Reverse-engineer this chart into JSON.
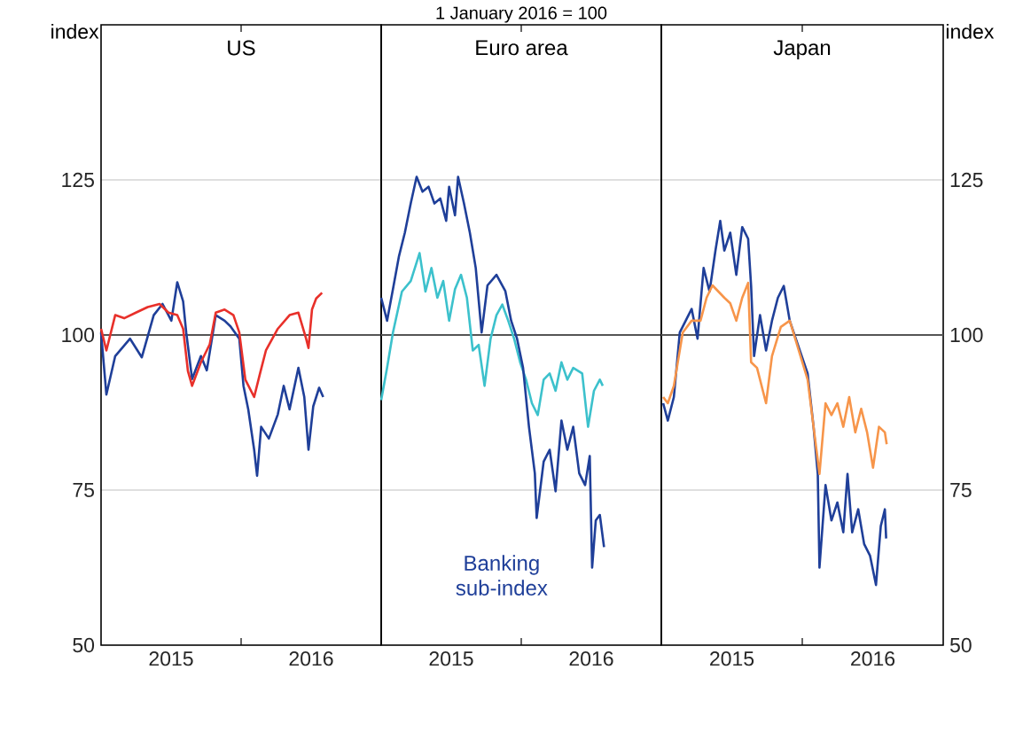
{
  "chart_data": [
    {
      "type": "line",
      "title": "US",
      "ylabel": "index",
      "xlim": [
        2015,
        2017
      ],
      "xticks": [
        {
          "value": 2015.5,
          "label": "2015"
        },
        {
          "value": 2016,
          "label": null
        },
        {
          "value": 2016.5,
          "label": "2016"
        }
      ],
      "ylim": [
        50,
        150
      ],
      "yticks": [
        50,
        75,
        100,
        125
      ],
      "grid": "y",
      "ref_lines": [
        {
          "axis": "y",
          "value": 100,
          "color": "#555555"
        }
      ],
      "series": [
        {
          "color": "#1f3f99",
          "x": [
            2015.0,
            2015.038,
            2015.101,
            2015.207,
            2015.291,
            2015.376,
            2015.439,
            2015.502,
            2015.544,
            2015.586,
            2015.608,
            2015.65,
            2015.713,
            2015.755,
            2015.819,
            2015.882,
            2015.924,
            2015.987,
            2016.017,
            2016.051,
            2016.093,
            2016.114,
            2016.143,
            2016.198,
            2016.262,
            2016.304,
            2016.346,
            2016.409,
            2016.451,
            2016.481,
            2016.515,
            2016.557,
            2016.586
          ],
          "values": [
            100.4,
            90.4,
            96.6,
            99.4,
            96.4,
            103.2,
            105,
            102.3,
            108.5,
            105.4,
            100.4,
            92.9,
            96.6,
            94.3,
            103.2,
            102.3,
            101.4,
            99.4,
            91.8,
            88,
            81.5,
            77.3,
            85.2,
            83.3,
            87.2,
            91.8,
            88,
            94.7,
            90,
            81.5,
            88.5,
            91.5,
            90
          ]
        },
        {
          "color": "#e8302a",
          "x": [
            2015.0,
            2015.038,
            2015.101,
            2015.165,
            2015.249,
            2015.333,
            2015.418,
            2015.481,
            2015.544,
            2015.586,
            2015.62,
            2015.65,
            2015.713,
            2015.776,
            2015.819,
            2015.882,
            2015.945,
            2015.987,
            2016.03,
            2016.093,
            2016.135,
            2016.177,
            2016.262,
            2016.346,
            2016.409,
            2016.464,
            2016.481,
            2016.506,
            2016.536,
            2016.578
          ],
          "values": [
            101,
            97.5,
            103.2,
            102.7,
            103.6,
            104.5,
            105,
            103.6,
            103.2,
            101,
            94.2,
            91.8,
            95.6,
            98.5,
            103.6,
            104.1,
            103.2,
            100.4,
            92.8,
            90,
            93.8,
            97.5,
            101,
            103.2,
            103.6,
            99.4,
            97.9,
            104.1,
            105.9,
            106.8
          ]
        }
      ]
    },
    {
      "type": "line",
      "title": "Euro area",
      "subtitle": "1 January 2016 = 100",
      "xlim": [
        2015,
        2017
      ],
      "xticks": [
        {
          "value": 2015.5,
          "label": "2015"
        },
        {
          "value": 2016,
          "label": null
        },
        {
          "value": 2016.5,
          "label": "2016"
        }
      ],
      "ylim": [
        50,
        150
      ],
      "yticks": [
        50,
        75,
        100,
        125
      ],
      "grid": "y",
      "tick_labels": "x",
      "ref_lines": [
        {
          "axis": "y",
          "value": 100,
          "color": "#555555"
        }
      ],
      "series": [
        {
          "color": "#3cc1cc",
          "x": [
            2015.0,
            2015.042,
            2015.084,
            2015.148,
            2015.211,
            2015.274,
            2015.316,
            2015.359,
            2015.401,
            2015.443,
            2015.485,
            2015.527,
            2015.57,
            2015.612,
            2015.654,
            2015.696,
            2015.738,
            2015.781,
            2015.823,
            2015.865,
            2015.907,
            2015.949,
            2015.992,
            2016.034,
            2016.076,
            2016.118,
            2016.16,
            2016.203,
            2016.245,
            2016.287,
            2016.329,
            2016.371,
            2016.435,
            2016.477,
            2016.519,
            2016.561,
            2016.582
          ],
          "values": [
            89.5,
            94.7,
            100.4,
            107,
            108.7,
            113.2,
            107,
            110.8,
            106,
            108.7,
            102.3,
            107.4,
            109.7,
            106,
            97.5,
            98.4,
            91.8,
            99.4,
            103.2,
            104.9,
            102.3,
            99.4,
            95.6,
            92.8,
            89,
            87.1,
            92.8,
            93.8,
            91,
            95.6,
            92.8,
            94.7,
            93.8,
            85.2,
            91,
            92.8,
            91.8
          ]
        },
        {
          "name": "Banking sub-index",
          "color": "#1f3f99",
          "x": [
            2015.0,
            2015.042,
            2015.084,
            2015.127,
            2015.169,
            2015.211,
            2015.253,
            2015.295,
            2015.338,
            2015.38,
            2015.422,
            2015.464,
            2015.485,
            2015.527,
            2015.549,
            2015.591,
            2015.633,
            2015.675,
            2015.717,
            2015.759,
            2015.823,
            2015.886,
            2015.928,
            2015.97,
            2016.013,
            2016.055,
            2016.097,
            2016.11,
            2016.16,
            2016.203,
            2016.245,
            2016.287,
            2016.329,
            2016.371,
            2016.414,
            2016.456,
            2016.489,
            2016.506,
            2016.532,
            2016.561,
            2016.591
          ],
          "values": [
            106,
            102.3,
            107.4,
            112.7,
            116.5,
            121.2,
            125.5,
            123.1,
            123.9,
            121.2,
            122,
            118.4,
            123.9,
            119.3,
            125.5,
            121.2,
            116.5,
            110.8,
            100.4,
            108,
            109.7,
            107.1,
            102.3,
            99.4,
            94.7,
            85.2,
            77.7,
            70.5,
            79.6,
            81.5,
            74.8,
            86.2,
            81.5,
            85.2,
            77.7,
            75.8,
            80.5,
            62.5,
            70.1,
            71,
            65.8
          ]
        }
      ]
    },
    {
      "type": "line",
      "title": "Japan",
      "y2label": "index",
      "xlim": [
        2015,
        2017
      ],
      "xticks": [
        {
          "value": 2015.5,
          "label": "2015"
        },
        {
          "value": 2016,
          "label": null
        },
        {
          "value": 2016.5,
          "label": "2016"
        }
      ],
      "y2lim": [
        50,
        150
      ],
      "y2ticks": [
        50,
        75,
        100,
        125
      ],
      "grid": "y",
      "ref_lines": [
        {
          "axis": "y2",
          "value": 100,
          "color": "#555555"
        }
      ],
      "series": [
        {
          "axis": "y2",
          "color": "#1f3f99",
          "x": [
            2015.013,
            2015.046,
            2015.089,
            2015.131,
            2015.173,
            2015.215,
            2015.257,
            2015.3,
            2015.342,
            2015.384,
            2015.418,
            2015.447,
            2015.489,
            2015.532,
            2015.574,
            2015.616,
            2015.637,
            2015.658,
            2015.7,
            2015.743,
            2015.785,
            2015.827,
            2015.869,
            2015.911,
            2015.954,
            2015.996,
            2016.038,
            2016.08,
            2016.11,
            2016.122,
            2016.165,
            2016.207,
            2016.249,
            2016.291,
            2016.321,
            2016.354,
            2016.397,
            2016.439,
            2016.481,
            2016.523,
            2016.557,
            2016.586,
            2016.595
          ],
          "values": [
            89,
            86.2,
            90,
            100.4,
            102.3,
            104.2,
            99.4,
            110.8,
            107,
            113.6,
            118.4,
            113.6,
            116.5,
            109.7,
            117.4,
            115.5,
            107.9,
            96.6,
            103.2,
            97.5,
            102.3,
            106,
            107.9,
            102.3,
            99.4,
            96.6,
            93.8,
            85.2,
            77.6,
            62.5,
            75.8,
            70.1,
            73,
            68.2,
            77.6,
            68.2,
            71.9,
            66.3,
            64.4,
            59.7,
            69.2,
            71.9,
            67.2
          ]
        },
        {
          "axis": "y2",
          "color": "#f7954a",
          "x": [
            2015.013,
            2015.046,
            2015.089,
            2015.152,
            2015.215,
            2015.278,
            2015.321,
            2015.363,
            2015.405,
            2015.447,
            2015.489,
            2015.532,
            2015.574,
            2015.616,
            2015.637,
            2015.679,
            2015.743,
            2015.785,
            2015.848,
            2015.911,
            2015.975,
            2016.038,
            2016.08,
            2016.122,
            2016.165,
            2016.207,
            2016.249,
            2016.291,
            2016.333,
            2016.376,
            2016.418,
            2016.46,
            2016.502,
            2016.544,
            2016.586,
            2016.599
          ],
          "values": [
            90,
            89,
            91.8,
            100.4,
            102.3,
            102.3,
            106,
            108,
            107,
            106,
            105.1,
            102.3,
            106,
            108.4,
            95.6,
            94.7,
            89,
            96.6,
            101.3,
            102.3,
            97.5,
            92.8,
            85.2,
            77.6,
            89,
            87.1,
            89,
            85.2,
            90,
            84.3,
            88.1,
            84.3,
            78.6,
            85.2,
            84.3,
            82.4
          ]
        }
      ]
    }
  ]
}
